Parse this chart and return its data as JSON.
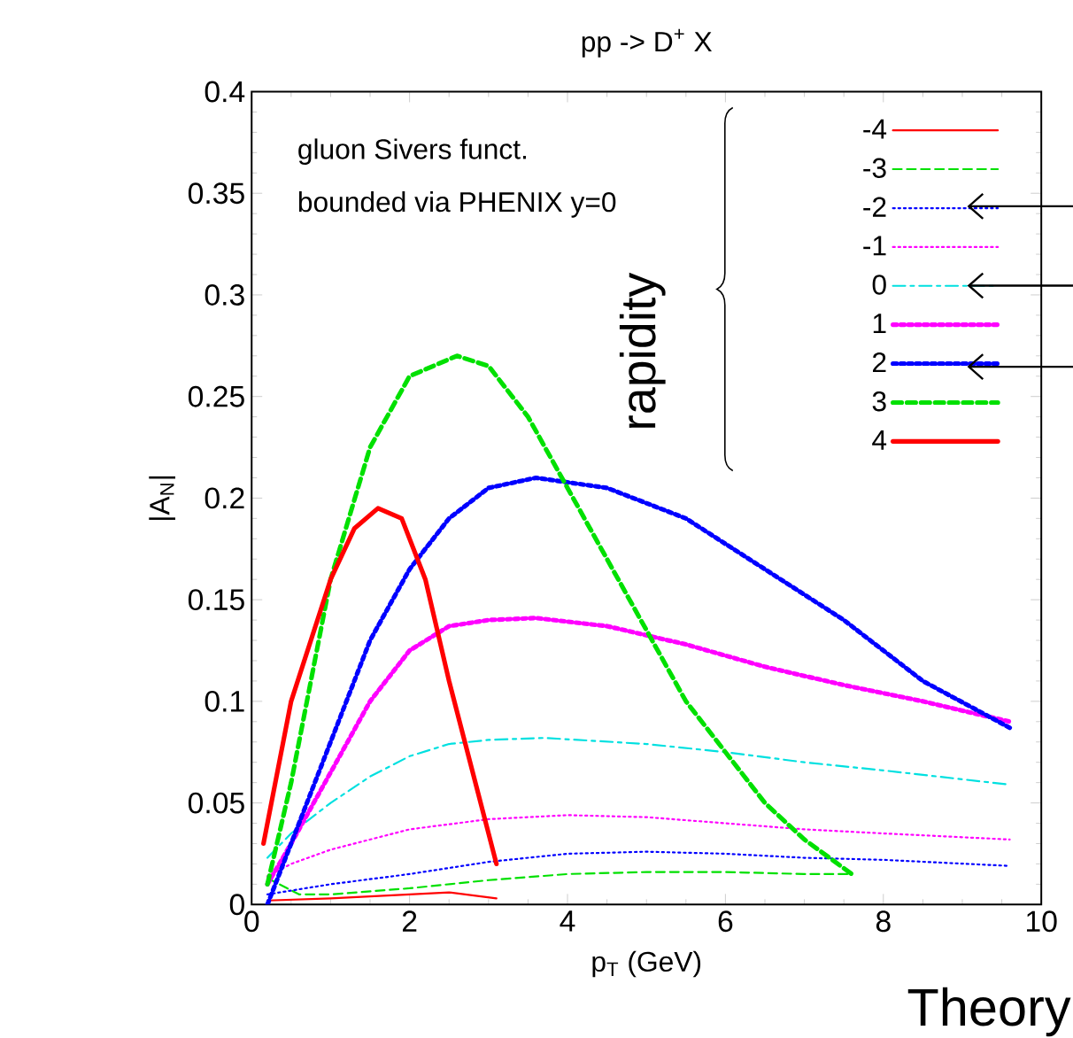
{
  "chart_data": {
    "type": "line",
    "title": "pp -> D$^{+}$ X",
    "xlabel": "p$_{T}$ (GeV)",
    "ylabel": "|A$_{N}$|",
    "xlim": [
      0,
      10
    ],
    "ylim": [
      0,
      0.4
    ],
    "xticks": [
      0,
      2,
      4,
      6,
      8,
      10
    ],
    "yticks": [
      0,
      0.05,
      0.1,
      0.15,
      0.2,
      0.25,
      0.3,
      0.35,
      0.4
    ],
    "grid": false,
    "legend": "top right",
    "marker": "none",
    "annotations": [
      "gluon Sivers funct.",
      "bounded via PHENIX y=0",
      "rapidity",
      "Theory"
    ],
    "series": [
      {
        "name": "-4",
        "color": "#ff0000",
        "line_style": "solid",
        "x": [
          0.2,
          1,
          2,
          2.5,
          3.1
        ],
        "values": [
          0.002,
          0.003,
          0.005,
          0.006,
          0.003
        ]
      },
      {
        "name": "-3",
        "color": "#00e000",
        "line_style": "dashed",
        "x": [
          0.2,
          0.6,
          1,
          2,
          3,
          4,
          5,
          6,
          7,
          7.6
        ],
        "values": [
          0.013,
          0.005,
          0.005,
          0.008,
          0.012,
          0.015,
          0.016,
          0.016,
          0.015,
          0.015
        ]
      },
      {
        "name": "-2",
        "color": "#0000ff",
        "line_style": "dotted",
        "x": [
          0.2,
          1,
          2,
          3,
          4,
          5,
          6,
          7,
          8,
          9.6
        ],
        "values": [
          0.005,
          0.01,
          0.015,
          0.021,
          0.025,
          0.026,
          0.025,
          0.023,
          0.022,
          0.019
        ]
      },
      {
        "name": "-1",
        "color": "#ff00ff",
        "line_style": "dotted",
        "x": [
          0.2,
          0.5,
          1,
          2,
          3,
          4,
          5,
          6,
          7,
          8,
          9.6
        ],
        "values": [
          0.014,
          0.02,
          0.027,
          0.037,
          0.042,
          0.044,
          0.043,
          0.04,
          0.037,
          0.035,
          0.032
        ]
      },
      {
        "name": "0",
        "color": "#00e0e0",
        "line_style": "dashdot",
        "x": [
          0.2,
          0.5,
          1,
          1.5,
          2,
          2.5,
          3,
          3.7,
          5,
          6,
          7,
          8,
          9.6
        ],
        "values": [
          0.023,
          0.035,
          0.05,
          0.063,
          0.073,
          0.079,
          0.081,
          0.082,
          0.079,
          0.075,
          0.07,
          0.066,
          0.059
        ]
      },
      {
        "name": "1",
        "color": "#ff00ff",
        "line_style": "dotted",
        "x": [
          0.2,
          0.5,
          1,
          1.5,
          2,
          2.5,
          3,
          3.6,
          4.5,
          5.5,
          6.5,
          7.5,
          8.5,
          9.6
        ],
        "values": [
          0.01,
          0.03,
          0.065,
          0.1,
          0.125,
          0.137,
          0.14,
          0.141,
          0.137,
          0.128,
          0.117,
          0.108,
          0.1,
          0.09
        ]
      },
      {
        "name": "2",
        "color": "#0000ff",
        "line_style": "dotted",
        "x": [
          0.2,
          0.5,
          1,
          1.5,
          2,
          2.5,
          3,
          3.6,
          4.5,
          5.5,
          6.5,
          7.5,
          8.5,
          9.6
        ],
        "values": [
          0.0,
          0.03,
          0.08,
          0.13,
          0.165,
          0.19,
          0.205,
          0.21,
          0.205,
          0.19,
          0.165,
          0.14,
          0.11,
          0.087
        ]
      },
      {
        "name": "3",
        "color": "#00e000",
        "line_style": "dashed",
        "x": [
          0.2,
          0.5,
          1,
          1.5,
          2,
          2.6,
          3,
          3.5,
          4,
          4.5,
          5,
          5.5,
          6,
          6.5,
          7,
          7.6
        ],
        "values": [
          0.01,
          0.06,
          0.16,
          0.225,
          0.26,
          0.27,
          0.265,
          0.24,
          0.205,
          0.17,
          0.135,
          0.1,
          0.075,
          0.05,
          0.032,
          0.015
        ]
      },
      {
        "name": "4",
        "color": "#ff0000",
        "line_style": "solid",
        "x": [
          0.15,
          0.5,
          1,
          1.3,
          1.6,
          1.9,
          2.2,
          2.5,
          2.8,
          3.1
        ],
        "values": [
          0.03,
          0.1,
          0.16,
          0.185,
          0.195,
          0.19,
          0.16,
          0.11,
          0.065,
          0.02
        ]
      }
    ]
  }
}
